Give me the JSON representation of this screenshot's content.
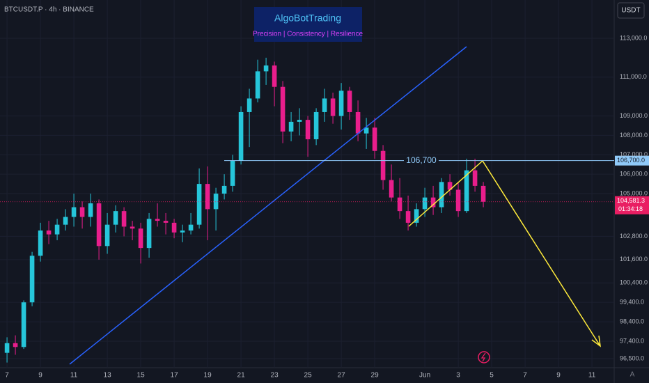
{
  "chart_data": {
    "type": "candlestick",
    "title": "BTCUSDT.P · 4h · BINANCE",
    "brand": {
      "name": "AlgoBotTrading",
      "tagline": "Precision  | Consistency | Resilience"
    },
    "currency_button": "USDT",
    "up_color": "#26c6da",
    "down_color": "#e91e8c",
    "x": [
      0,
      0.5,
      1,
      1.5,
      2,
      2.5,
      3,
      3.5,
      4,
      4.5,
      5,
      5.5,
      6,
      6.5,
      7,
      7.5,
      8,
      8.5,
      9,
      9.5,
      10,
      10.5,
      11,
      11.5,
      12,
      12.5,
      13,
      13.5,
      14,
      14.5,
      15,
      15.5,
      16,
      16.5,
      17,
      17.5,
      18,
      18.5,
      19,
      19.5,
      20,
      20.5,
      21,
      21.5,
      22,
      22.5,
      23,
      23.5,
      24,
      24.5,
      25,
      25.5,
      26,
      26.5,
      27,
      27.5,
      28,
      28.5
    ],
    "open": [
      96800,
      97300,
      97100,
      99400,
      101800,
      103100,
      102900,
      103400,
      103800,
      104300,
      103800,
      104500,
      102300,
      103400,
      104100,
      103300,
      103200,
      102200,
      103700,
      103600,
      103500,
      103000,
      103100,
      103400,
      105500,
      104200,
      105000,
      105400,
      106700,
      109200,
      109900,
      111300,
      111600,
      110500,
      108200,
      108700,
      108800,
      107800,
      109200,
      109900,
      109000,
      110300,
      109200,
      108100,
      108400,
      107200,
      105700,
      104800,
      104100,
      103500,
      104200,
      104800,
      104300,
      105600,
      105200,
      104100,
      106200,
      105400
    ],
    "high": [
      97600,
      97700,
      99500,
      102000,
      103500,
      103600,
      103700,
      104200,
      105000,
      104600,
      105000,
      104700,
      104000,
      104400,
      104300,
      103600,
      103500,
      104000,
      104500,
      104000,
      103700,
      103400,
      104000,
      106300,
      106400,
      105300,
      106000,
      107000,
      109500,
      110400,
      111900,
      112000,
      111800,
      110800,
      109200,
      109400,
      109000,
      109400,
      110400,
      110200,
      110700,
      110500,
      109800,
      108900,
      108900,
      107500,
      106500,
      105800,
      104900,
      104500,
      105300,
      105400,
      105800,
      106000,
      105600,
      106800,
      106800,
      105600
    ],
    "low": [
      96300,
      96700,
      97000,
      99200,
      101500,
      102400,
      102600,
      103100,
      103300,
      103200,
      103300,
      101600,
      101900,
      103000,
      102800,
      102600,
      101400,
      101700,
      103300,
      102900,
      102700,
      102500,
      102900,
      103200,
      102600,
      103100,
      104700,
      105100,
      106500,
      107400,
      109700,
      110600,
      109500,
      107600,
      107700,
      108000,
      106900,
      107500,
      108700,
      108600,
      108300,
      108800,
      107700,
      107300,
      106800,
      105200,
      104600,
      103700,
      103100,
      103300,
      103800,
      103900,
      104000,
      104900,
      103800,
      104000,
      105100,
      104300
    ],
    "close": [
      97300,
      97100,
      99400,
      101800,
      103100,
      102900,
      103400,
      103800,
      104300,
      103800,
      104500,
      102300,
      103400,
      104100,
      103300,
      103200,
      102200,
      103700,
      103600,
      103500,
      103000,
      103100,
      103400,
      105500,
      104200,
      105000,
      105400,
      106700,
      109200,
      109900,
      111300,
      111600,
      110500,
      108200,
      108700,
      108800,
      107800,
      109200,
      109900,
      109000,
      110300,
      109200,
      108100,
      108400,
      107200,
      105700,
      104800,
      104100,
      103500,
      104200,
      104800,
      104300,
      105600,
      105200,
      104100,
      106200,
      105400,
      104581.3
    ],
    "xlim": [
      -0.42,
      36.33
    ],
    "xticks": [
      {
        "value": 0,
        "label": "7"
      },
      {
        "value": 2,
        "label": "9"
      },
      {
        "value": 4,
        "label": "11"
      },
      {
        "value": 6,
        "label": "13"
      },
      {
        "value": 8,
        "label": "15"
      },
      {
        "value": 10,
        "label": "17"
      },
      {
        "value": 12,
        "label": "19"
      },
      {
        "value": 14,
        "label": "21"
      },
      {
        "value": 16,
        "label": "23"
      },
      {
        "value": 18,
        "label": "25"
      },
      {
        "value": 20,
        "label": "27"
      },
      {
        "value": 22,
        "label": "29"
      },
      {
        "value": 25,
        "label": "Jun"
      },
      {
        "value": 27,
        "label": "3"
      },
      {
        "value": 29,
        "label": "5"
      },
      {
        "value": 31,
        "label": "7"
      },
      {
        "value": 33,
        "label": "9"
      },
      {
        "value": 35,
        "label": "11"
      }
    ],
    "ylim": [
      96035,
      114973
    ],
    "yticks": [
      {
        "value": 113000,
        "label": "113,000.0"
      },
      {
        "value": 111000,
        "label": "111,000.0"
      },
      {
        "value": 109000,
        "label": "109,000.0"
      },
      {
        "value": 108000,
        "label": "108,000.0"
      },
      {
        "value": 107000,
        "label": "107,000.0"
      },
      {
        "value": 106000,
        "label": "106,000.0"
      },
      {
        "value": 105000,
        "label": "105,000.0"
      },
      {
        "value": 102800,
        "label": "102,800.0"
      },
      {
        "value": 101600,
        "label": "101,600.0"
      },
      {
        "value": 100400,
        "label": "100,400.0"
      },
      {
        "value": 99400,
        "label": "99,400.0"
      },
      {
        "value": 98400,
        "label": "98,400.0"
      },
      {
        "value": 97400,
        "label": "97,400.0"
      },
      {
        "value": 96500,
        "label": "96,500.0"
      }
    ],
    "level": {
      "value": 106700,
      "label": "106,700",
      "axis_label": "106,700.0"
    },
    "last_price": {
      "value": 104581.3,
      "label": "104,581.3",
      "countdown": "01:34:18"
    }
  }
}
